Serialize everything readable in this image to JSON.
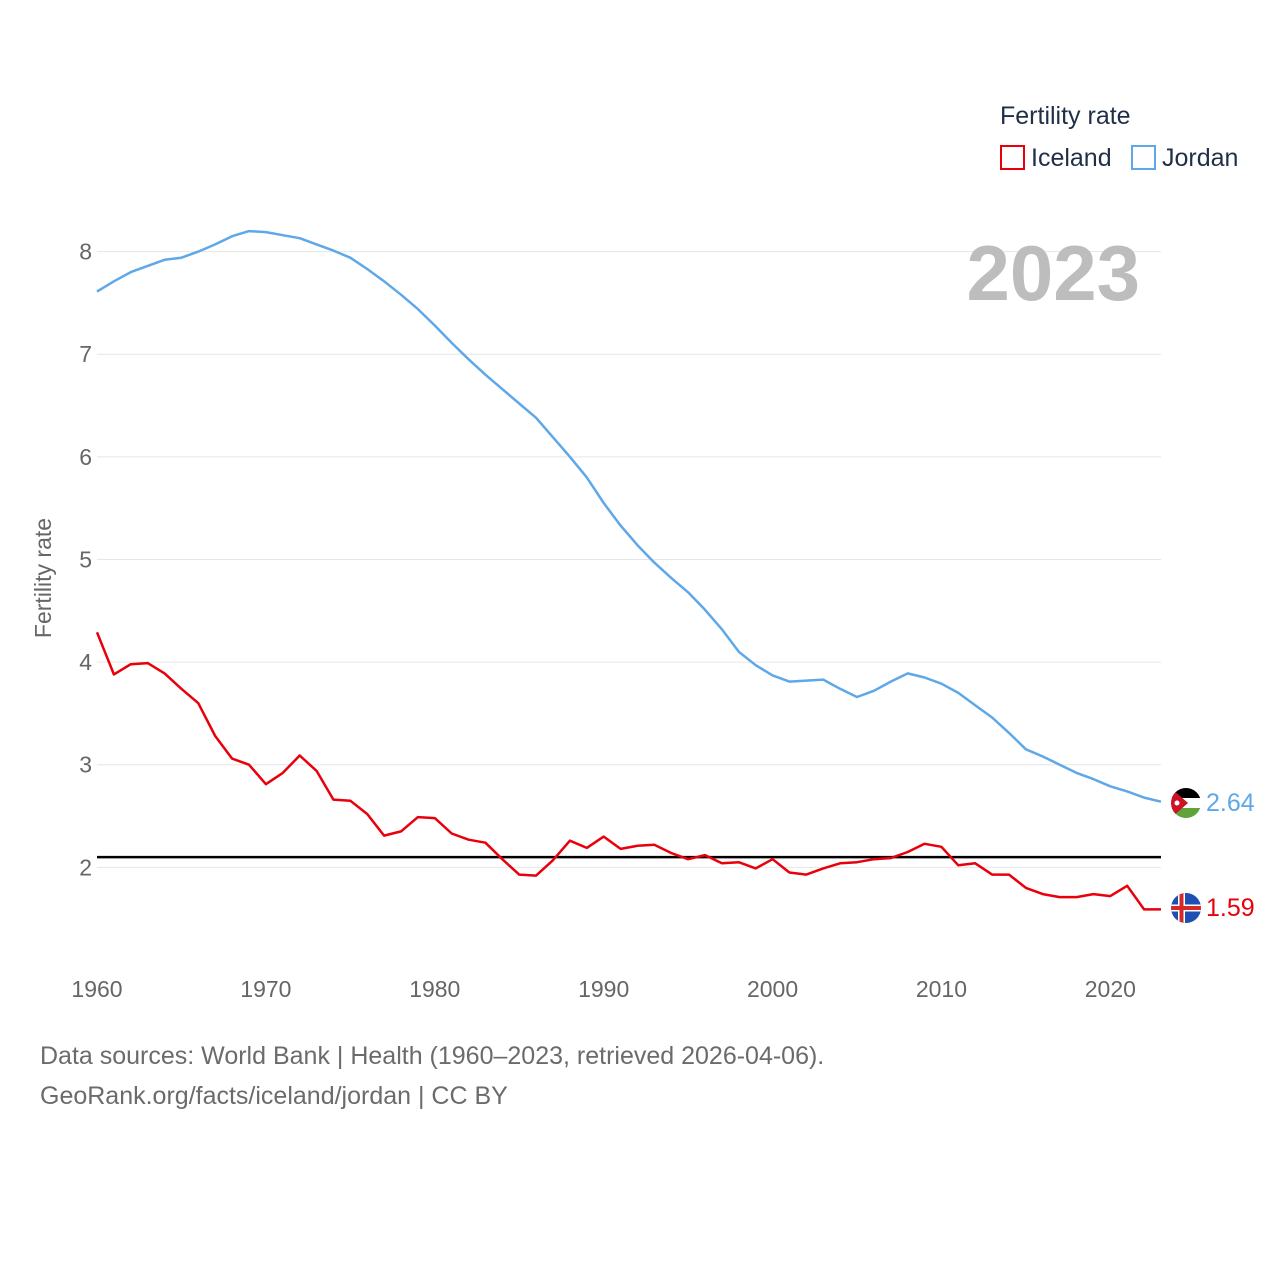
{
  "chart_data": {
    "type": "line",
    "ylabel": "Fertility rate",
    "xlabel": "",
    "xlim": [
      1960,
      2023
    ],
    "ylim": [
      1.0,
      8.6
    ],
    "x_ticks": [
      1960,
      1970,
      1980,
      1990,
      2000,
      2010,
      2020
    ],
    "y_ticks": [
      2,
      3,
      4,
      5,
      6,
      7,
      8
    ],
    "legend": {
      "title": "Fertility rate",
      "position": "top-right",
      "entries": [
        "Iceland",
        "Jordan"
      ]
    },
    "year_label": "2023",
    "reference_line": {
      "value": 2.1,
      "color": "#000000"
    },
    "x": [
      1960,
      1961,
      1962,
      1963,
      1964,
      1965,
      1966,
      1967,
      1968,
      1969,
      1970,
      1971,
      1972,
      1973,
      1974,
      1975,
      1976,
      1977,
      1978,
      1979,
      1980,
      1981,
      1982,
      1983,
      1984,
      1985,
      1986,
      1987,
      1988,
      1989,
      1990,
      1991,
      1992,
      1993,
      1994,
      1995,
      1996,
      1997,
      1998,
      1999,
      2000,
      2001,
      2002,
      2003,
      2004,
      2005,
      2006,
      2007,
      2008,
      2009,
      2010,
      2011,
      2012,
      2013,
      2014,
      2015,
      2016,
      2017,
      2018,
      2019,
      2020,
      2021,
      2022,
      2023
    ],
    "series": [
      {
        "name": "Iceland",
        "color": "#e8000b",
        "end_label": "1.59",
        "values": [
          4.29,
          3.88,
          3.98,
          3.99,
          3.89,
          3.74,
          3.6,
          3.28,
          3.06,
          3.0,
          2.81,
          2.92,
          3.09,
          2.94,
          2.66,
          2.65,
          2.52,
          2.31,
          2.35,
          2.49,
          2.48,
          2.33,
          2.27,
          2.24,
          2.08,
          1.93,
          1.92,
          2.07,
          2.26,
          2.19,
          2.3,
          2.18,
          2.21,
          2.22,
          2.14,
          2.08,
          2.12,
          2.04,
          2.05,
          1.99,
          2.08,
          1.95,
          1.93,
          1.99,
          2.04,
          2.05,
          2.08,
          2.09,
          2.15,
          2.23,
          2.2,
          2.02,
          2.04,
          1.93,
          1.93,
          1.8,
          1.74,
          1.71,
          1.71,
          1.74,
          1.72,
          1.82,
          1.59,
          1.59
        ]
      },
      {
        "name": "Jordan",
        "color": "#5fa8e8",
        "end_label": "2.64",
        "values": [
          7.61,
          7.71,
          7.8,
          7.86,
          7.92,
          7.94,
          8.0,
          8.07,
          8.15,
          8.2,
          8.19,
          8.16,
          8.13,
          8.07,
          8.01,
          7.94,
          7.83,
          7.71,
          7.58,
          7.44,
          7.28,
          7.11,
          6.95,
          6.8,
          6.66,
          6.52,
          6.38,
          6.19,
          6.0,
          5.8,
          5.55,
          5.33,
          5.14,
          4.97,
          4.82,
          4.68,
          4.51,
          4.32,
          4.1,
          3.97,
          3.87,
          3.81,
          3.82,
          3.83,
          3.74,
          3.66,
          3.72,
          3.81,
          3.89,
          3.85,
          3.79,
          3.7,
          3.58,
          3.46,
          3.31,
          3.15,
          3.08,
          3.0,
          2.92,
          2.86,
          2.79,
          2.74,
          2.68,
          2.64
        ]
      }
    ]
  },
  "footer": {
    "line1": "Data sources: World Bank | Health (1960–2023, retrieved 2026-04-06).",
    "line2": "GeoRank.org/facts/iceland/jordan | CC BY"
  }
}
